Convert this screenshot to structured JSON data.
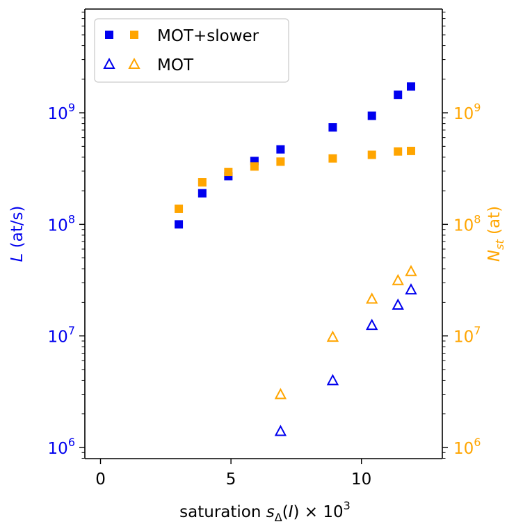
{
  "chart_data": {
    "type": "scatter",
    "xlabel_main": "saturation ",
    "xlabel_var": "s",
    "xlabel_sub": "Δ",
    "xlabel_paren": "(I)",
    "xlabel_times": " × 10",
    "xlabel_exp": "3",
    "ylabel_left_var": "L",
    "ylabel_left_unit": " (at/s)",
    "ylabel_right_var": "N",
    "ylabel_right_sub": "st",
    "ylabel_right_unit": " (at)",
    "xlim": [
      -0.6,
      13.1
    ],
    "ylim_left_log10": [
      5.9,
      9.93
    ],
    "ylim_right_log10": [
      5.9,
      9.93
    ],
    "x_ticks": [
      0,
      5,
      10
    ],
    "y_ticks_exponents": [
      6,
      7,
      8,
      9
    ],
    "tick_base": "10",
    "left_color": "#0000ee",
    "right_color": "#ffa500",
    "legend": {
      "placement": "top-left",
      "entries": [
        "MOT+slower",
        "MOT"
      ]
    },
    "series": [
      {
        "name": "L MOT+slower",
        "axis": "left",
        "marker": "square",
        "color": "#0000ee",
        "x": [
          3.0,
          3.9,
          4.9,
          5.9,
          6.9,
          8.9,
          10.4,
          11.4,
          11.9
        ],
        "y": [
          100000000.0,
          190000000.0,
          270000000.0,
          370000000.0,
          470000000.0,
          740000000.0,
          940000000.0,
          1450000000.0,
          1720000000.0
        ]
      },
      {
        "name": "N MOT+slower",
        "axis": "right",
        "marker": "square",
        "color": "#ffa500",
        "x": [
          3.0,
          3.9,
          4.9,
          5.9,
          6.9,
          8.9,
          10.4,
          11.4,
          11.9
        ],
        "y": [
          138000000.0,
          238000000.0,
          295000000.0,
          330000000.0,
          365000000.0,
          390000000.0,
          420000000.0,
          450000000.0,
          455000000.0
        ]
      },
      {
        "name": "L MOT",
        "axis": "left",
        "marker": "triangle",
        "color": "#0000ee",
        "x": [
          6.9,
          8.9,
          10.4,
          11.4,
          11.9
        ],
        "y": [
          1400000.0,
          4000000.0,
          12500000.0,
          19000000.0,
          26000000.0
        ]
      },
      {
        "name": "N MOT",
        "axis": "right",
        "marker": "triangle",
        "color": "#ffa500",
        "x": [
          6.9,
          8.9,
          10.4,
          11.4,
          11.9
        ],
        "y": [
          3000000.0,
          9800000.0,
          21500000.0,
          31500000.0,
          38000000.0
        ]
      }
    ]
  }
}
